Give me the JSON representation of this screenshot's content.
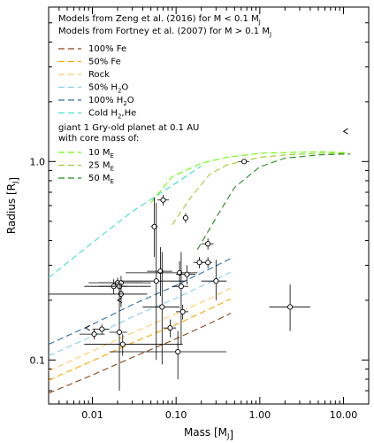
{
  "chart_data": {
    "type": "scatter",
    "xscale": "log",
    "yscale": "log",
    "xlim": [
      0.003,
      20
    ],
    "ylim": [
      0.06,
      6.0
    ],
    "xlabel": "Mass [M_J]",
    "ylabel": "Radius [R_J]",
    "xticks": [
      {
        "value": 0.01,
        "label": "0.01"
      },
      {
        "value": 0.1,
        "label": "0.10"
      },
      {
        "value": 1,
        "label": "1.00"
      },
      {
        "value": 10,
        "label": "10.00"
      }
    ],
    "yticks": [
      {
        "value": 0.1,
        "label": "0.1"
      },
      {
        "value": 1,
        "label": "1.0"
      }
    ],
    "grid": false,
    "legend_position": "top-left",
    "legend_header": [
      "Models from Zeng et al. (2016) for M < 0.1 M_J",
      "Models from Fortney et al. (2007) for M > 0.1 M_J"
    ],
    "giant_header": [
      "giant 1 Gry-old planet at 0.1 AU",
      "with core mass of:"
    ],
    "series": [
      {
        "name": "100% Fe",
        "color": "#8b4513",
        "x": [
          0.003,
          0.01,
          0.03,
          0.1,
          0.3,
          0.45
        ],
        "y": [
          0.068,
          0.084,
          0.103,
          0.128,
          0.158,
          0.172
        ]
      },
      {
        "name": "50% Fe",
        "color": "#ffa500",
        "x": [
          0.003,
          0.01,
          0.03,
          0.1,
          0.3,
          0.45
        ],
        "y": [
          0.079,
          0.099,
          0.122,
          0.151,
          0.187,
          0.203
        ]
      },
      {
        "name": "Rock",
        "color": "#ffc966",
        "x": [
          0.003,
          0.01,
          0.03,
          0.1,
          0.3,
          0.45
        ],
        "y": [
          0.088,
          0.111,
          0.137,
          0.171,
          0.211,
          0.23
        ]
      },
      {
        "name": "50% H2O",
        "color": "#87ceeb",
        "x": [
          0.003,
          0.01,
          0.03,
          0.1,
          0.3,
          0.45
        ],
        "y": [
          0.105,
          0.132,
          0.165,
          0.205,
          0.255,
          0.277
        ]
      },
      {
        "name": "100% H2O",
        "color": "#2f6fa8",
        "x": [
          0.003,
          0.01,
          0.03,
          0.1,
          0.3,
          0.45
        ],
        "y": [
          0.12,
          0.151,
          0.19,
          0.238,
          0.298,
          0.325
        ]
      },
      {
        "name": "Cold H2,He",
        "color": "#40e0d0",
        "x": [
          0.003,
          0.01,
          0.03,
          0.1,
          0.2
        ],
        "y": [
          0.26,
          0.39,
          0.56,
          0.78,
          0.95
        ]
      },
      {
        "name": "10 ME",
        "color": "#66ff00",
        "x": [
          0.05,
          0.09,
          0.2,
          0.4,
          1.0,
          2.0,
          5.0,
          10.0,
          12.0
        ],
        "y": [
          0.62,
          0.84,
          0.98,
          1.05,
          1.1,
          1.11,
          1.12,
          1.11,
          1.09
        ]
      },
      {
        "name": "25 ME",
        "color": "#9acd32",
        "x": [
          0.09,
          0.15,
          0.25,
          0.4,
          1.0,
          2.0,
          5.0,
          10.0,
          12.0
        ],
        "y": [
          0.48,
          0.66,
          0.86,
          0.96,
          1.05,
          1.08,
          1.1,
          1.1,
          1.09
        ]
      },
      {
        "name": "50 ME",
        "color": "#228b22",
        "x": [
          0.18,
          0.3,
          0.5,
          1.0,
          2.0,
          5.0,
          10.0,
          12.0
        ],
        "y": [
          0.36,
          0.52,
          0.74,
          0.94,
          1.04,
          1.08,
          1.09,
          1.09
        ]
      }
    ],
    "points": [
      {
        "x": 0.0105,
        "y": 0.135,
        "xerr": [
          0.007,
          0.014
        ],
        "yerr": [
          0.127,
          0.143
        ]
      },
      {
        "x": 0.013,
        "y": 0.143,
        "xerr": [
          0.01,
          0.016
        ],
        "yerr": [
          0.135,
          0.151
        ]
      },
      {
        "x": 0.018,
        "y": 0.235,
        "xerr": [
          0.012,
          0.026
        ],
        "yerr": [
          0.215,
          0.255
        ]
      },
      {
        "x": 0.02,
        "y": 0.245,
        "xerr": [
          0.009,
          0.04
        ],
        "yerr": [
          0.23,
          0.26
        ]
      },
      {
        "x": 0.021,
        "y": 0.235,
        "xerr": [
          0.008,
          0.05
        ],
        "yerr": [
          0.22,
          0.25
        ]
      },
      {
        "x": 0.022,
        "y": 0.245,
        "xerr": [
          0.012,
          0.05
        ],
        "yerr": [
          0.225,
          0.265
        ]
      },
      {
        "x": 0.022,
        "y": 0.215,
        "xerr": [
          0.003,
          0.045
        ],
        "yerr": [
          0.185,
          0.245
        ]
      },
      {
        "x": 0.021,
        "y": 0.138,
        "xerr": [
          0.016,
          0.026
        ],
        "yerr": [
          0.07,
          0.25
        ]
      },
      {
        "x": 0.023,
        "y": 0.12,
        "xerr": [
          0.008,
          0.12
        ],
        "yerr": [
          0.105,
          0.135
        ]
      },
      {
        "x": 0.055,
        "y": 0.47,
        "xerr": [
          0.05,
          0.06
        ],
        "yerr": [
          0.33,
          0.66
        ]
      },
      {
        "x": 0.058,
        "y": 0.25,
        "xerr": [
          0.022,
          0.13
        ],
        "yerr": [
          0.1,
          0.62
        ]
      },
      {
        "x": 0.065,
        "y": 0.28,
        "xerr": [
          0.045,
          0.09
        ],
        "yerr": [
          0.21,
          0.37
        ]
      },
      {
        "x": 0.068,
        "y": 0.185,
        "xerr": [
          0.04,
          0.11
        ],
        "yerr": [
          0.095,
          0.35
        ]
      },
      {
        "x": 0.07,
        "y": 0.64,
        "xerr": [
          0.06,
          0.082
        ],
        "yerr": [
          0.6,
          0.68
        ]
      },
      {
        "x": 0.085,
        "y": 0.145,
        "xerr": [
          0.07,
          0.1
        ],
        "yerr": [
          0.13,
          0.16
        ]
      },
      {
        "x": 0.105,
        "y": 0.11,
        "xerr": [
          0.016,
          0.4
        ],
        "yerr": [
          0.08,
          0.14
        ]
      },
      {
        "x": 0.11,
        "y": 0.275,
        "xerr": [
          0.025,
          0.18
        ],
        "yerr": [
          0.235,
          0.315
        ]
      },
      {
        "x": 0.115,
        "y": 0.235,
        "xerr": [
          0.09,
          0.14
        ],
        "yerr": [
          0.12,
          0.35
        ]
      },
      {
        "x": 0.12,
        "y": 0.175,
        "xerr": [
          0.1,
          0.14
        ],
        "yerr": [
          0.16,
          0.19
        ]
      },
      {
        "x": 0.13,
        "y": 0.52,
        "xerr": [
          0.12,
          0.14
        ],
        "yerr": [
          0.49,
          0.55
        ]
      },
      {
        "x": 0.135,
        "y": 0.27,
        "xerr": [
          0.1,
          0.17
        ],
        "yerr": [
          0.24,
          0.3
        ]
      },
      {
        "x": 0.19,
        "y": 0.31,
        "xerr": [
          0.16,
          0.22
        ],
        "yerr": [
          0.29,
          0.33
        ]
      },
      {
        "x": 0.24,
        "y": 0.31,
        "xerr": [
          0.2,
          0.27
        ],
        "yerr": [
          0.29,
          0.33
        ]
      },
      {
        "x": 0.24,
        "y": 0.385,
        "xerr": [
          0.2,
          0.28
        ],
        "yerr": [
          0.36,
          0.41
        ]
      },
      {
        "x": 0.3,
        "y": 0.25,
        "xerr": [
          0.2,
          0.4
        ],
        "yerr": [
          0.2,
          0.32
        ]
      },
      {
        "x": 0.65,
        "y": 1.0,
        "xerr": [
          0.55,
          0.75
        ],
        "yerr": [
          0.98,
          1.02
        ]
      },
      {
        "x": 2.3,
        "y": 0.185,
        "xerr": [
          1.3,
          4.0
        ],
        "yerr": [
          0.14,
          0.24
        ]
      }
    ],
    "lower_limits": [
      {
        "x": 0.0087,
        "y": 0.145
      },
      {
        "x": 0.021,
        "y": 0.2
      },
      {
        "x": 10.5,
        "y": 1.42
      }
    ],
    "offscale_errorbar": {
      "y": 0.215,
      "x_from": 0.003,
      "x_to": 0.045
    }
  }
}
